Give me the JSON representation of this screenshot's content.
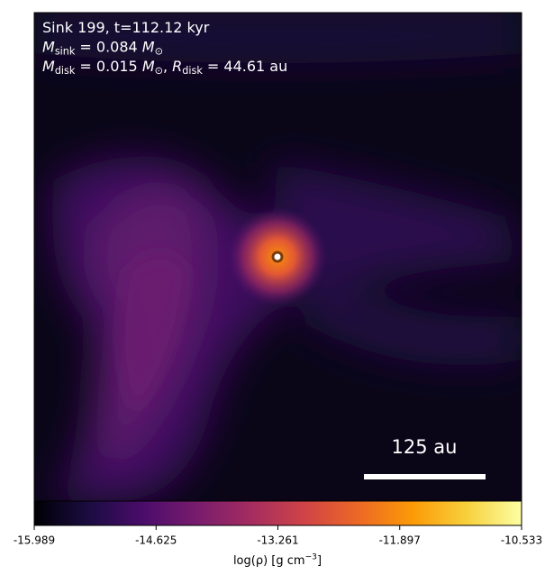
{
  "chart_data": {
    "type": "density-map",
    "annotation": [
      [
        {
          "t": "Sink 199, t=112.12 kyr"
        }
      ],
      [
        {
          "i": "M"
        },
        {
          "sub": "sink"
        },
        {
          "t": " = 0.084 "
        },
        {
          "i": "M"
        },
        {
          "sub": "⊙"
        }
      ],
      [
        {
          "i": "M"
        },
        {
          "sub": "disk"
        },
        {
          "t": " = 0.015 "
        },
        {
          "i": "M"
        },
        {
          "sub": "⊙"
        },
        {
          "t": ", "
        },
        {
          "i": "R"
        },
        {
          "sub": "disk"
        },
        {
          "t": " = 44.61 au"
        }
      ]
    ],
    "scale_bar_label": "125 au",
    "colorbar_label": [
      {
        "t": "log(ρ) [g cm"
      },
      {
        "sup": "−3"
      },
      {
        "t": "]"
      }
    ],
    "clim": [
      -15.989,
      -10.533
    ],
    "cticks": [
      -15.989,
      -14.625,
      -13.261,
      -11.897,
      -10.533
    ],
    "colormap": [
      "#000004",
      "#1b0c41",
      "#4a0c6b",
      "#781c6d",
      "#a52c60",
      "#cf4446",
      "#ed6925",
      "#fb9b06",
      "#f7d13d",
      "#fcffa4"
    ]
  }
}
